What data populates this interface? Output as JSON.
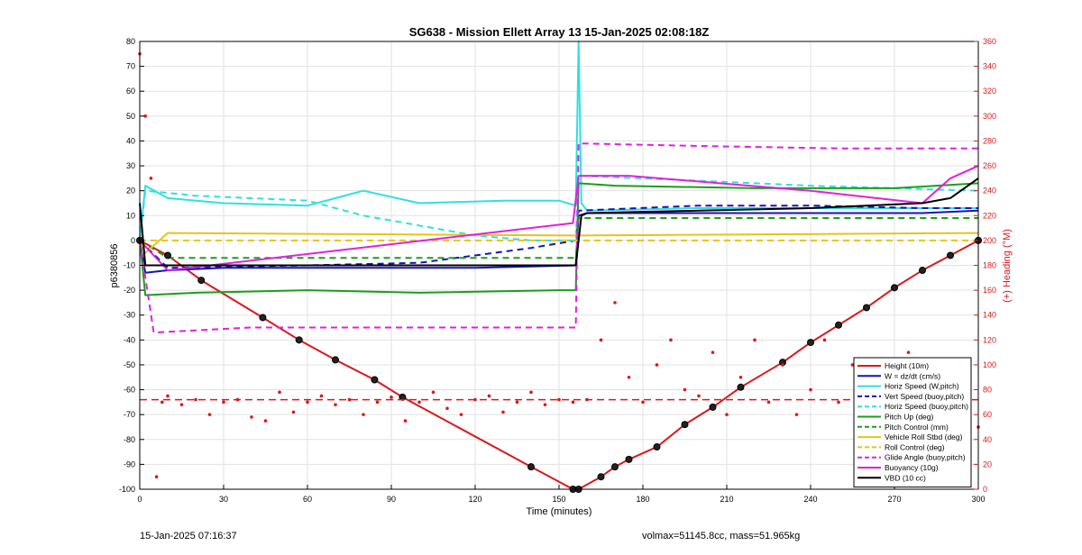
{
  "chart_data": {
    "type": "line",
    "title": "SG638 - Mission Ellett Array 13 15-Jan-2025 02:08:18Z",
    "xlabel": "Time (minutes)",
    "ylabel": "p6380856",
    "y2label": "(+) Heading (°M)",
    "xlim": [
      0,
      300
    ],
    "ylim": [
      -100,
      80
    ],
    "y2lim": [
      0,
      360
    ],
    "xticks": [
      0,
      30,
      60,
      90,
      120,
      150,
      180,
      210,
      240,
      270,
      300
    ],
    "yticks": [
      -100,
      -90,
      -80,
      -70,
      -60,
      -50,
      -40,
      -30,
      -20,
      -10,
      0,
      10,
      20,
      30,
      40,
      50,
      60,
      70,
      80
    ],
    "y2ticks": [
      0,
      20,
      40,
      60,
      80,
      100,
      120,
      140,
      160,
      180,
      200,
      220,
      240,
      260,
      280,
      300,
      320,
      340,
      360
    ],
    "grid": true,
    "legend_position": "bottom-right",
    "series": [
      {
        "name": "Height (10m)",
        "color": "#d7191c",
        "style": "solid",
        "x": [
          0,
          10,
          22,
          44,
          57,
          70,
          84,
          94,
          140,
          155,
          157,
          165,
          170,
          175,
          185,
          195,
          205,
          215,
          230,
          240,
          250,
          260,
          270,
          280,
          290,
          300
        ],
        "y": [
          0,
          -6,
          -16,
          -31,
          -40,
          -48,
          -56,
          -63,
          -91,
          -100,
          -100,
          -95,
          -91,
          -88,
          -83,
          -74,
          -67,
          -59,
          -49,
          -41,
          -34,
          -27,
          -19,
          -12,
          -6,
          0
        ]
      },
      {
        "name": "W = dz/dt (cm/s)",
        "color": "#1515b5",
        "style": "solid",
        "x": [
          0,
          2,
          10,
          30,
          60,
          90,
          120,
          156,
          157,
          160,
          200,
          240,
          280,
          300
        ],
        "y": [
          0,
          -13,
          -12,
          -11,
          -11,
          -11,
          -11,
          -10,
          10,
          11,
          11,
          11,
          11,
          12
        ]
      },
      {
        "name": "Horiz Speed (W,pitch)",
        "color": "#2fe0e0",
        "style": "solid",
        "x": [
          0,
          2,
          10,
          30,
          60,
          80,
          100,
          130,
          150,
          156,
          157,
          158,
          160,
          200,
          240,
          280,
          300
        ],
        "y": [
          0,
          22,
          17,
          15,
          14,
          20,
          15,
          16,
          16,
          14,
          80,
          15,
          12,
          13,
          13,
          13,
          13
        ]
      },
      {
        "name": "Vert Speed (buoy,pitch)",
        "color": "#1515b5",
        "style": "dashed",
        "x": [
          0,
          10,
          60,
          100,
          120,
          140,
          156,
          157,
          200,
          240,
          280,
          300
        ],
        "y": [
          0,
          -11,
          -10,
          -9,
          -6,
          -3,
          0,
          12,
          14,
          14,
          13,
          13
        ]
      },
      {
        "name": "Horiz Speed (buoy,pitch)",
        "color": "#2fe0e0",
        "style": "dashed",
        "x": [
          0,
          2,
          20,
          60,
          80,
          100,
          120,
          140,
          156,
          157,
          200,
          240,
          300
        ],
        "y": [
          0,
          20,
          18,
          16,
          10,
          6,
          2,
          0,
          0,
          26,
          24,
          22,
          20
        ]
      },
      {
        "name": "Pitch Up (deg)",
        "color": "#1a9e1a",
        "style": "solid",
        "x": [
          0,
          2,
          20,
          60,
          100,
          150,
          156,
          157,
          170,
          220,
          270,
          300
        ],
        "y": [
          0,
          -22,
          -21,
          -20,
          -21,
          -20,
          -20,
          23,
          22,
          21,
          21,
          23
        ]
      },
      {
        "name": "Pitch Control (mm)",
        "color": "#1a9e1a",
        "style": "dashed",
        "x": [
          0,
          10,
          156,
          157,
          300
        ],
        "y": [
          0,
          -7,
          -7,
          9,
          9
        ]
      },
      {
        "name": "Vehicle Roll Stbd (deg)",
        "color": "#e6c419",
        "style": "solid",
        "x": [
          0,
          2,
          10,
          156,
          157,
          300
        ],
        "y": [
          0,
          -5,
          3,
          2,
          2,
          3
        ]
      },
      {
        "name": "Roll Control (deg)",
        "color": "#e6c419",
        "style": "dashed",
        "x": [
          0,
          10,
          156,
          157,
          300
        ],
        "y": [
          0,
          0,
          0,
          0,
          0
        ]
      },
      {
        "name": "Glide Angle (buoy,pitch)",
        "color": "#e020e0",
        "style": "dashed",
        "x": [
          0,
          5,
          40,
          80,
          120,
          156,
          157,
          200,
          250,
          300
        ],
        "y": [
          0,
          -37,
          -35,
          -35,
          -35,
          -35,
          39,
          38,
          37,
          37
        ]
      },
      {
        "name": "Buoyancy (10g)",
        "color": "#e020e0",
        "style": "solid",
        "x": [
          0,
          10,
          155,
          157,
          160,
          175,
          240,
          280,
          290,
          300
        ],
        "y": [
          0,
          -12,
          7,
          26,
          26,
          26,
          20,
          15,
          25,
          30
        ]
      },
      {
        "name": "VBD (10 cc)",
        "color": "#000000",
        "style": "solid",
        "x": [
          0,
          2,
          10,
          60,
          100,
          156,
          157,
          158,
          160,
          200,
          240,
          280,
          290,
          300
        ],
        "y": [
          15,
          -10,
          -10,
          -10,
          -10,
          -10,
          0,
          10,
          11,
          12,
          13,
          15,
          17,
          25
        ]
      }
    ],
    "heading": {
      "color": "#d7191c",
      "axis": "right",
      "mean_heading": 72,
      "x": [
        0,
        2,
        4,
        6,
        8,
        10,
        15,
        20,
        25,
        30,
        35,
        40,
        45,
        50,
        55,
        60,
        65,
        70,
        75,
        80,
        85,
        90,
        95,
        100,
        105,
        110,
        115,
        120,
        125,
        130,
        135,
        140,
        145,
        150,
        155,
        160,
        165,
        170,
        175,
        180,
        185,
        190,
        195,
        200,
        205,
        210,
        215,
        220,
        225,
        230,
        235,
        240,
        245,
        250,
        255,
        260,
        265,
        270,
        275,
        280,
        285,
        290,
        295,
        300
      ],
      "y": [
        350,
        300,
        250,
        10,
        70,
        75,
        68,
        72,
        60,
        70,
        72,
        58,
        55,
        78,
        62,
        70,
        75,
        68,
        72,
        60,
        70,
        74,
        55,
        70,
        78,
        65,
        60,
        72,
        75,
        62,
        70,
        78,
        68,
        72,
        70,
        72,
        120,
        150,
        90,
        70,
        100,
        120,
        80,
        75,
        110,
        60,
        90,
        120,
        70,
        100,
        60,
        80,
        120,
        70,
        100,
        60,
        90,
        80,
        110,
        70,
        100,
        60,
        90,
        50
      ]
    }
  },
  "footer": {
    "left_text": "15-Jan-2025 07:16:37",
    "right_text": "volmax=51145.8cc, mass=51.965kg"
  }
}
